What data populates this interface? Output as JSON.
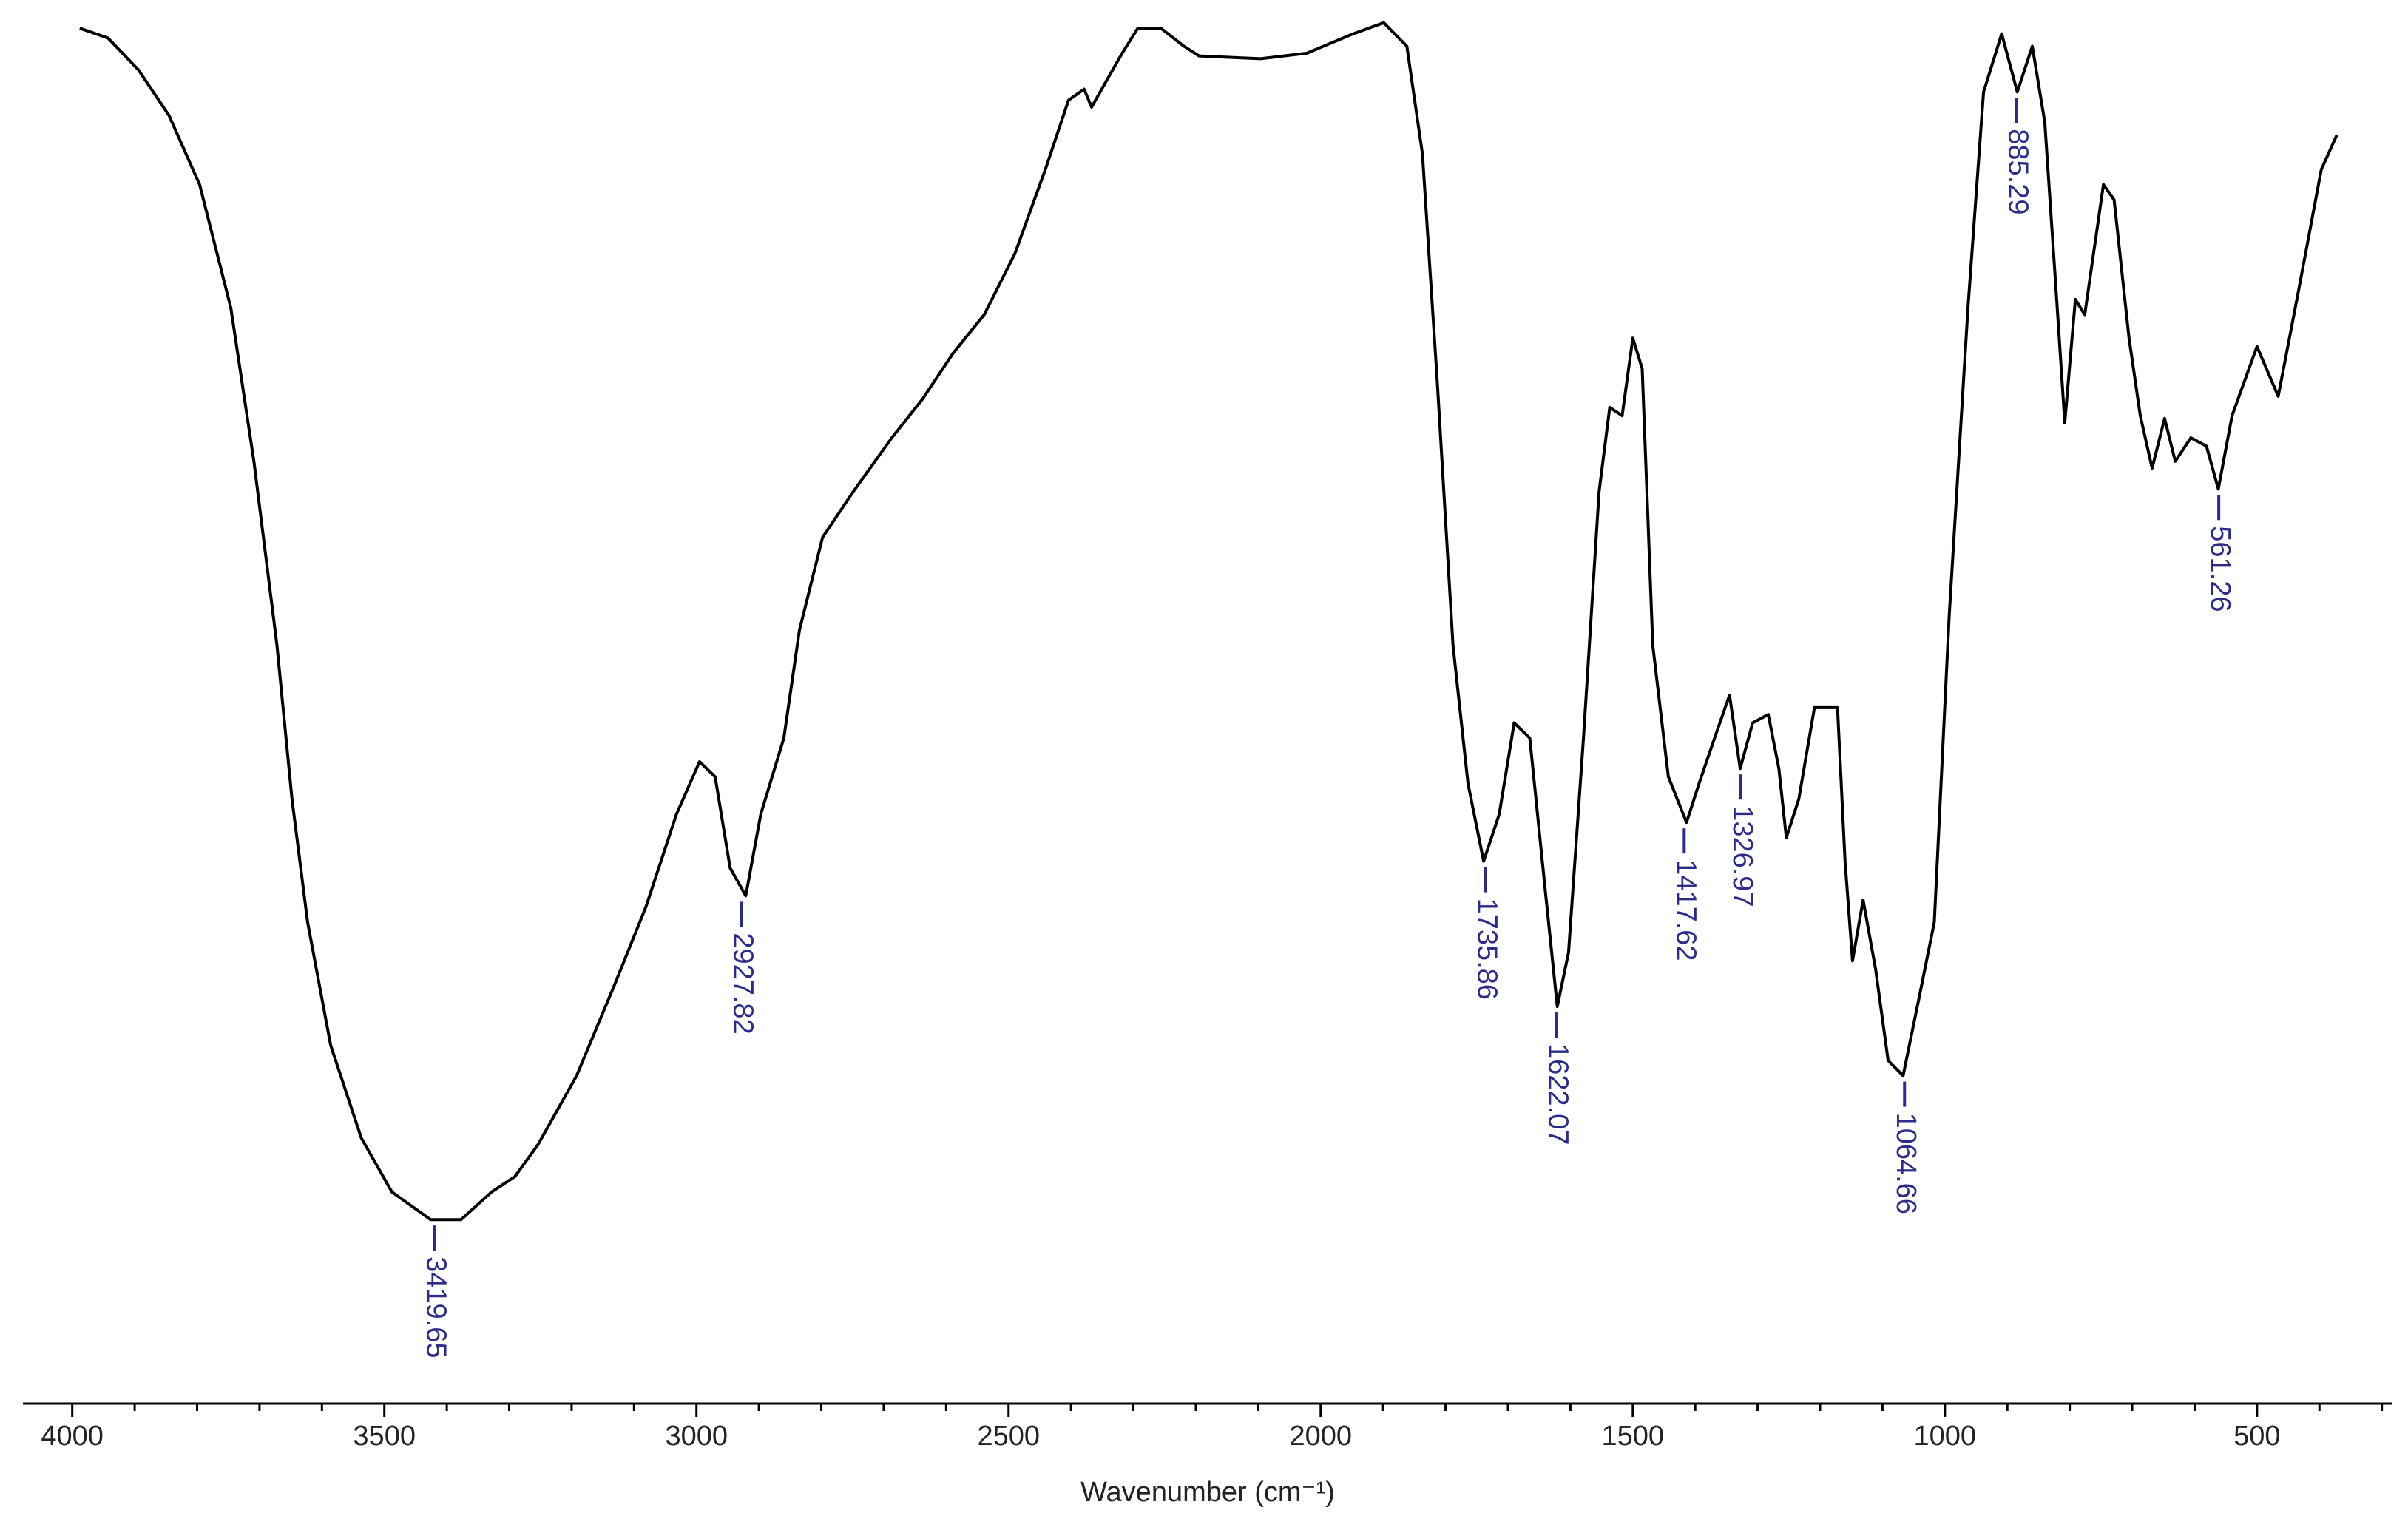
{
  "chart_data": {
    "type": "line",
    "x_label": "Wavenumber (cm⁻¹)",
    "xlim": [
      4079,
      283
    ],
    "ylim": [
      0,
      100
    ],
    "xticks": [
      4000,
      3500,
      3000,
      2500,
      2000,
      1500,
      1000,
      500
    ],
    "xminorticks": [
      3900,
      3800,
      3700,
      3600,
      3400,
      3300,
      3200,
      3100,
      2900,
      2800,
      2700,
      2600,
      2400,
      2300,
      2200,
      2100,
      1900,
      1800,
      1700,
      1600,
      1400,
      1300,
      1200,
      1100,
      900,
      800,
      700,
      600,
      400,
      300
    ],
    "series": [
      {
        "color": "#000000",
        "x": [
          3988,
          3943,
          3894,
          3845,
          3796,
          3746,
          3709,
          3672,
          3648,
          3623,
          3586,
          3537,
          3488,
          3426,
          3377,
          3328,
          3291,
          3254,
          3192,
          3131,
          3081,
          3032,
          2995,
          2970,
          2946,
          2921,
          2897,
          2860,
          2835,
          2798,
          2749,
          2687,
          2638,
          2589,
          2539,
          2490,
          2441,
          2404,
          2379,
          2367,
          2342,
          2318,
          2293,
          2256,
          2219,
          2195,
          2096,
          2022,
          1948,
          1899,
          1862,
          1837,
          1813,
          1788,
          1764,
          1739,
          1714,
          1690,
          1665,
          1640,
          1621,
          1603,
          1579,
          1554,
          1537,
          1517,
          1500,
          1485,
          1468,
          1443,
          1414,
          1394,
          1369,
          1345,
          1328,
          1308,
          1283,
          1266,
          1254,
          1234,
          1209,
          1172,
          1160,
          1148,
          1131,
          1111,
          1091,
          1067,
          1042,
          1017,
          993,
          963,
          938,
          909,
          884,
          860,
          840,
          820,
          808,
          791,
          776,
          746,
          729,
          705,
          687,
          668,
          648,
          631,
          606,
          581,
          562,
          540,
          500,
          466,
          434,
          397,
          372
        ],
        "values": [
          99.4,
          98.7,
          96.4,
          93.1,
          88.1,
          79.2,
          68.1,
          54.8,
          43.7,
          34.8,
          25.9,
          19.2,
          15.3,
          13.3,
          13.3,
          15.3,
          16.4,
          18.7,
          23.7,
          30.3,
          35.9,
          42.6,
          46.4,
          45.3,
          38.7,
          36.7,
          42.6,
          48.1,
          55.9,
          62.6,
          65.9,
          69.8,
          72.6,
          75.9,
          78.7,
          83.1,
          89.2,
          94.2,
          95,
          93.7,
          95.7,
          97.6,
          99.4,
          99.4,
          98.1,
          97.4,
          97.2,
          97.6,
          99,
          99.8,
          98.1,
          90.3,
          73.7,
          54.8,
          44.8,
          39.2,
          42.6,
          49.2,
          48.1,
          37,
          28.7,
          32.6,
          48.1,
          65.9,
          72,
          71.4,
          77,
          74.8,
          54.8,
          45.3,
          42,
          44.8,
          48.1,
          51.2,
          45.9,
          49.2,
          49.8,
          45.9,
          40.9,
          43.7,
          50.3,
          50.3,
          39.2,
          32,
          36.4,
          31.4,
          24.8,
          23.7,
          29.2,
          34.8,
          57,
          79.2,
          94.8,
          99,
          94.8,
          98.1,
          92.6,
          79.2,
          70.9,
          79.8,
          78.7,
          88.1,
          87,
          77,
          71.4,
          67.6,
          71.2,
          68.1,
          69.8,
          69.2,
          66.1,
          71.4,
          76.4,
          72.8,
          80.3,
          89.2,
          91.7
        ]
      }
    ],
    "annotations": [
      {
        "x": 3419.65,
        "y": 13.3
      },
      {
        "x": 2927.82,
        "y": 36.7
      },
      {
        "x": 1735.86,
        "y": 39.2
      },
      {
        "x": 1622.07,
        "y": 28.7
      },
      {
        "x": 1417.62,
        "y": 42
      },
      {
        "x": 1326.97,
        "y": 45.9
      },
      {
        "x": 1064.66,
        "y": 23.7
      },
      {
        "x": 885.29,
        "y": 94.8
      },
      {
        "x": 561.26,
        "y": 66.1
      }
    ]
  }
}
